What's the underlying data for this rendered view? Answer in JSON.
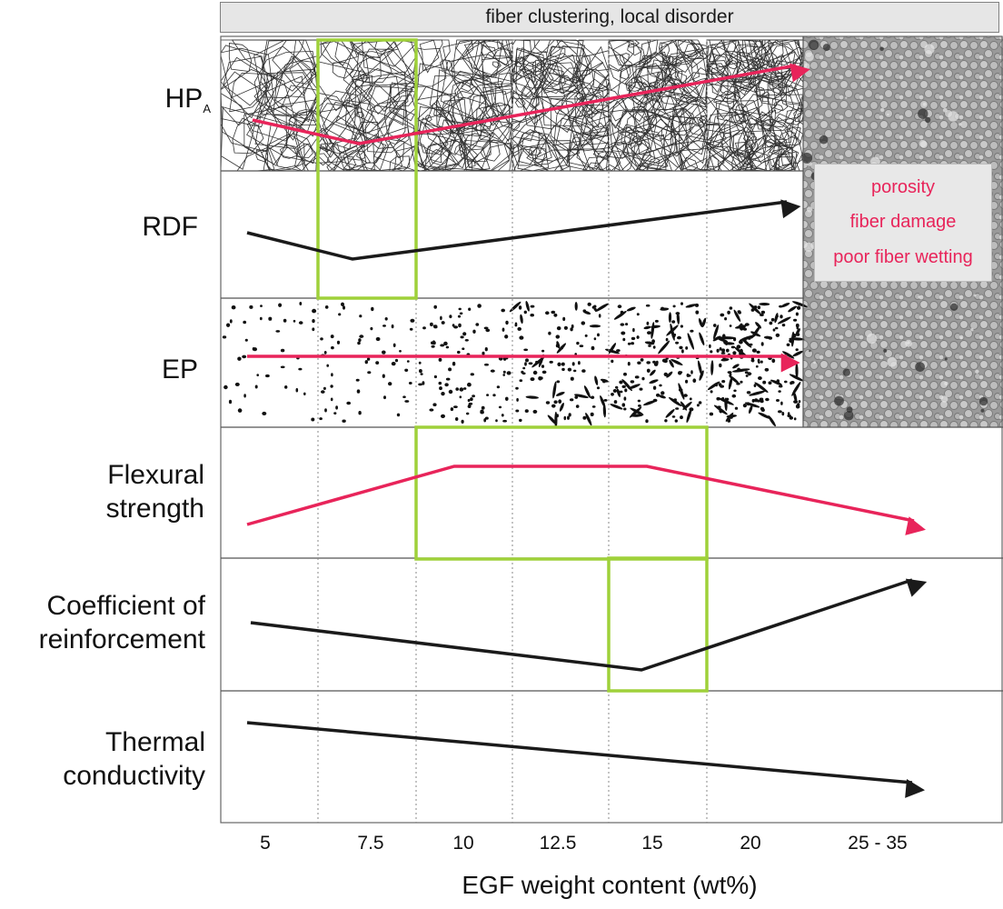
{
  "header": "fiber clustering, local disorder",
  "rows": {
    "hpa": {
      "main": "HP",
      "sub": "A"
    },
    "rdf": "RDF",
    "ep": "EP",
    "flexural": [
      "Flexural",
      "strength"
    ],
    "coefficient": [
      "Coefficient of",
      "reinforcement"
    ],
    "thermal": [
      "Thermal",
      "conductivity"
    ]
  },
  "notes": [
    "porosity",
    "fiber damage",
    "poor fiber wetting"
  ],
  "x_axis": {
    "ticks": [
      "5",
      "7.5",
      "10",
      "12.5",
      "15",
      "20",
      "25 - 35"
    ],
    "title": "EGF weight content (wt%)"
  },
  "trends": [
    {
      "row": "HPA",
      "values": [
        "5",
        "7.5",
        "20"
      ],
      "shape": "down-then-up",
      "color": "#e8245a"
    },
    {
      "row": "RDF",
      "values": [
        "5",
        "7.5",
        "20"
      ],
      "shape": "down-then-up",
      "color": "#1a1a1a"
    },
    {
      "row": "EP",
      "values": [
        "5",
        "20"
      ],
      "shape": "flat",
      "color": "#e8245a"
    },
    {
      "row": "Flexural strength",
      "values": [
        "5",
        "10",
        "15",
        "25 - 35"
      ],
      "shape": "up-plateau-down",
      "color": "#e8245a"
    },
    {
      "row": "Coefficient of reinforcement",
      "values": [
        "5",
        "15",
        "25 - 35"
      ],
      "shape": "down-then-up",
      "color": "#1a1a1a"
    },
    {
      "row": "Thermal conductivity",
      "values": [
        "5",
        "25 - 35"
      ],
      "shape": "decreasing",
      "color": "#1a1a1a"
    }
  ],
  "highlights": [
    {
      "rows": "HPA-RDF",
      "range": "7.5"
    },
    {
      "rows": "Flexural strength",
      "range": "10 - 15"
    },
    {
      "rows": "Coefficient of reinforcement",
      "range": "15"
    }
  ],
  "colors": {
    "accent": "#e8245a",
    "highlight": "#9fd13a",
    "dark": "#1a1a1a"
  }
}
